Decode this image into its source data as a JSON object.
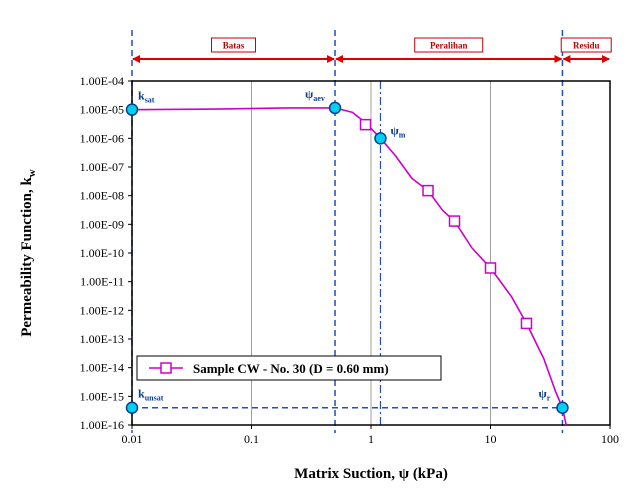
{
  "chart_data": {
    "type": "line",
    "xlabel": "Matrix Suction, ψ (kPa)",
    "ylabel": "Permeability Function, k",
    "ylabel_sub": "w",
    "x_scale": "log",
    "y_scale": "log",
    "xlim": [
      0.01,
      100
    ],
    "ylim": [
      1e-16,
      0.0001
    ],
    "x_ticks": [
      {
        "value": 0.01,
        "label": "0.01"
      },
      {
        "value": 0.1,
        "label": "0.1"
      },
      {
        "value": 1,
        "label": "1"
      },
      {
        "value": 10,
        "label": "10"
      },
      {
        "value": 100,
        "label": "100"
      }
    ],
    "y_ticks": [
      {
        "value": 0.0001,
        "label": "1.00E-04"
      },
      {
        "value": 1e-05,
        "label": "1.00E-05"
      },
      {
        "value": 1e-06,
        "label": "1.00E-06"
      },
      {
        "value": 1e-07,
        "label": "1.00E-07"
      },
      {
        "value": 1e-08,
        "label": "1.00E-08"
      },
      {
        "value": 1e-09,
        "label": "1.00E-09"
      },
      {
        "value": 1e-10,
        "label": "1.00E-10"
      },
      {
        "value": 1e-11,
        "label": "1.00E-11"
      },
      {
        "value": 1e-12,
        "label": "1.00E-12"
      },
      {
        "value": 1e-13,
        "label": "1.00E-13"
      },
      {
        "value": 1e-14,
        "label": "1.00E-14"
      },
      {
        "value": 1e-15,
        "label": "1.00E-15"
      },
      {
        "value": 1e-16,
        "label": "1.00E-16"
      }
    ],
    "grid": "vertical major",
    "legend": {
      "placement": "lower-left",
      "entry": "Sample CW - No. 30 (D = 0.60 mm)"
    },
    "series": [
      {
        "name": "Sample CW - No. 30 (D = 0.60 mm)",
        "color": "#cc00cc",
        "marker": "open-square",
        "curve": [
          [
            0.01,
            1e-05
          ],
          [
            0.05,
            1.05e-05
          ],
          [
            0.2,
            1.15e-05
          ],
          [
            0.5,
            1.15e-05
          ],
          [
            0.7,
            8e-06
          ],
          [
            0.9,
            3.5e-06
          ],
          [
            1.2,
            1e-06
          ],
          [
            1.6,
            2.5e-07
          ],
          [
            2.2,
            4e-08
          ],
          [
            3.0,
            1.5e-08
          ],
          [
            4.0,
            3e-09
          ],
          [
            5.0,
            1.3e-09
          ],
          [
            7.0,
            1.5e-10
          ],
          [
            10,
            3e-11
          ],
          [
            15,
            3e-12
          ],
          [
            20,
            3.5e-13
          ],
          [
            28,
            2e-14
          ],
          [
            35,
            1.5e-15
          ],
          [
            40,
            4e-16
          ],
          [
            43,
            1e-16
          ]
        ],
        "markers": [
          [
            0.9,
            3e-06
          ],
          [
            3.0,
            1.5e-08
          ],
          [
            5.0,
            1.3e-09
          ],
          [
            10,
            3e-11
          ],
          [
            20,
            3.5e-13
          ]
        ]
      }
    ],
    "key_points": [
      {
        "id": "ksat",
        "label": "k",
        "sub": "sat",
        "x": 0.01,
        "y": 1e-05
      },
      {
        "id": "psi_aev",
        "label": "ψ",
        "sub": "aev",
        "x": 0.5,
        "y": 1.15e-05
      },
      {
        "id": "psi_m",
        "label": "ψ",
        "sub": "m",
        "x": 1.2,
        "y": 1e-06
      },
      {
        "id": "kunsat",
        "label": "k",
        "sub": "unsat",
        "x": 0.01,
        "y": 4e-16
      },
      {
        "id": "psi_r",
        "label": "ψ",
        "sub": "r",
        "x": 40,
        "y": 4e-16
      }
    ],
    "vertical_dashed": [
      0.01,
      0.5,
      40
    ],
    "vertical_dashdot": [
      1.2
    ],
    "horizontal_dashed": {
      "y": 4e-16,
      "from": 0.01,
      "to": 40
    },
    "zones": [
      {
        "label": "Batas",
        "from": 0.01,
        "to": 0.5
      },
      {
        "label": "Peralihan",
        "from": 0.5,
        "to": 40
      },
      {
        "label": "Residu",
        "from": 40,
        "to": 100
      }
    ]
  },
  "colors": {
    "curve": "#cc00cc",
    "guide": "#1f4fbf",
    "point_fill": "#00d0f0",
    "point_stroke": "#0b3d91",
    "zone_arrow": "#dd0000",
    "zone_box": "#c00000",
    "grid": "#a0a0a0"
  }
}
